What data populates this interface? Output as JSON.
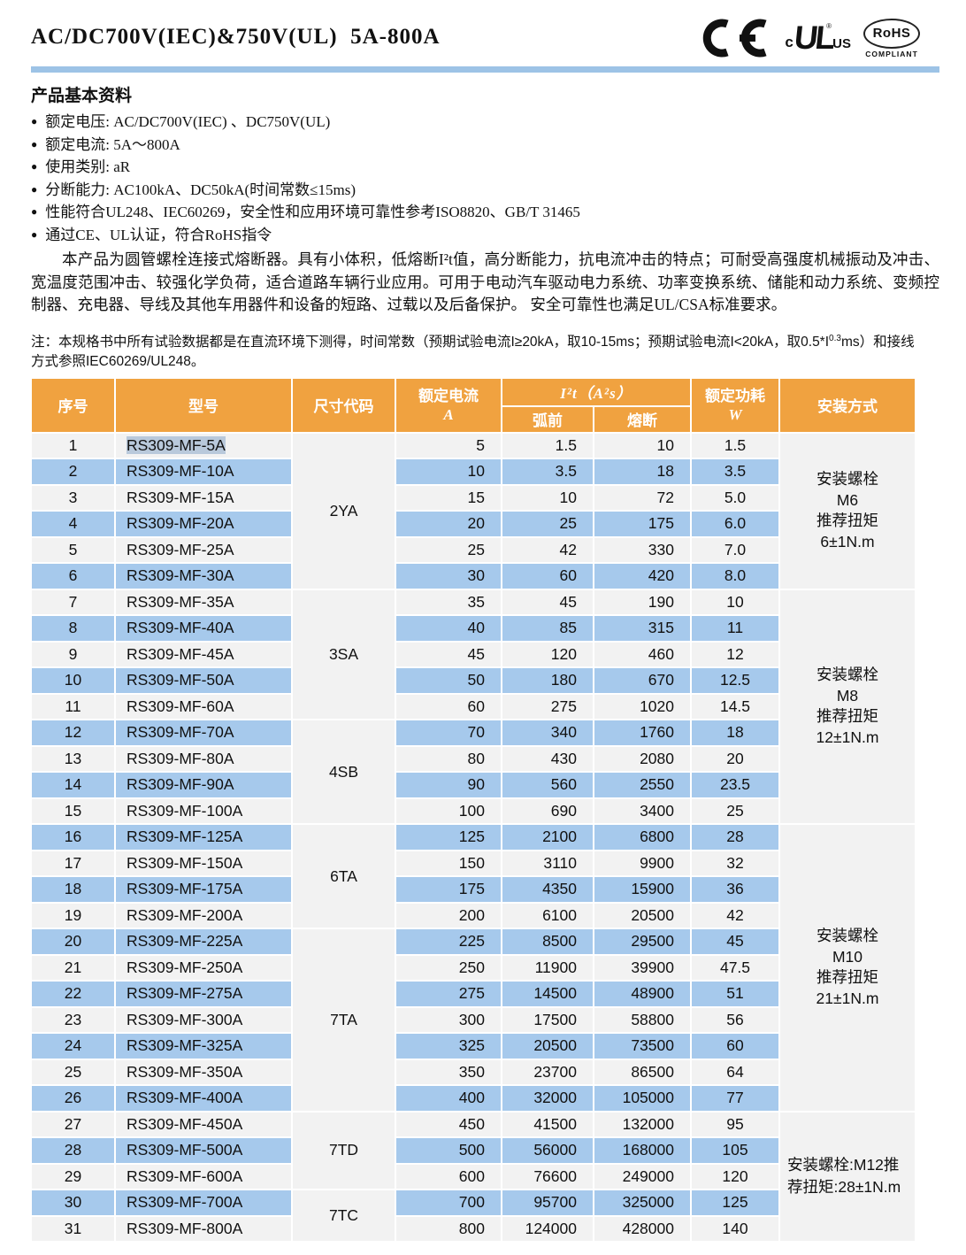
{
  "header": {
    "title": "AC/DC700V(IEC)&750V(UL)  5A-800A",
    "logos": {
      "ce": "CE-mark",
      "ul_c": "c",
      "ul": "UL",
      "ul_us": "US",
      "ul_reg": "®",
      "rohs": "RoHS",
      "rohs_compliant": "COMPLIANT"
    }
  },
  "basic_info": {
    "heading": "产品基本资料",
    "bullets": [
      "额定电压: AC/DC700V(IEC) 、DC750V(UL)",
      "额定电流: 5A～800A",
      "使用类别: aR",
      "分断能力: AC100kA、DC50kA(时间常数≤15ms)",
      "性能符合UL248、IEC60269，安全性和应用环境可靠性参考ISO8820、GB/T 31465",
      "通过CE、UL认证，符合RoHS指令"
    ],
    "paragraph": "本产品为圆管螺栓连接式熔断器。具有小体积，低熔断I²t值，高分断能力，抗电流冲击的特点；可耐受高强度机械振动及冲击、宽温度范围冲击、较强化学负荷，适合道路车辆行业应用。可用于电动汽车驱动电力系统、功率变换系统、储能和动力系统、变频控制器、充电器、导线及其他车用器件和设备的短路、过载以及后备保护。 安全可靠性也满足UL/CSA标准要求。"
  },
  "note": {
    "part1": "注：本规格书中所有试验数据都是在直流环境下测得，时间常数（预期试验电流I≥20kA，取10-15ms；预期试验电流I<20kA，取0.5*I",
    "sup": "0.3",
    "part2": "ms）和接线方式参照IEC60269/UL248。"
  },
  "table": {
    "headers": {
      "no": "序号",
      "model": "型号",
      "size_code": "尺寸代码",
      "current_line1": "额定电流",
      "current_line2": "A",
      "i2t": "I²t（A²s）",
      "prearc": "弧前",
      "melt": "熔断",
      "power_line1": "额定功耗",
      "power_line2": "W",
      "mount": "安装方式"
    },
    "rows": [
      {
        "no": "1",
        "model": "RS309-MF-5A",
        "current": "5",
        "prearc": "1.5",
        "melt": "10",
        "power": "1.5",
        "highlight": true
      },
      {
        "no": "2",
        "model": "RS309-MF-10A",
        "current": "10",
        "prearc": "3.5",
        "melt": "18",
        "power": "3.5"
      },
      {
        "no": "3",
        "model": "RS309-MF-15A",
        "current": "15",
        "prearc": "10",
        "melt": "72",
        "power": "5.0"
      },
      {
        "no": "4",
        "model": "RS309-MF-20A",
        "current": "20",
        "prearc": "25",
        "melt": "175",
        "power": "6.0"
      },
      {
        "no": "5",
        "model": "RS309-MF-25A",
        "current": "25",
        "prearc": "42",
        "melt": "330",
        "power": "7.0"
      },
      {
        "no": "6",
        "model": "RS309-MF-30A",
        "current": "30",
        "prearc": "60",
        "melt": "420",
        "power": "8.0"
      },
      {
        "no": "7",
        "model": "RS309-MF-35A",
        "current": "35",
        "prearc": "45",
        "melt": "190",
        "power": "10"
      },
      {
        "no": "8",
        "model": "RS309-MF-40A",
        "current": "40",
        "prearc": "85",
        "melt": "315",
        "power": "11"
      },
      {
        "no": "9",
        "model": "RS309-MF-45A",
        "current": "45",
        "prearc": "120",
        "melt": "460",
        "power": "12"
      },
      {
        "no": "10",
        "model": "RS309-MF-50A",
        "current": "50",
        "prearc": "180",
        "melt": "670",
        "power": "12.5"
      },
      {
        "no": "11",
        "model": "RS309-MF-60A",
        "current": "60",
        "prearc": "275",
        "melt": "1020",
        "power": "14.5"
      },
      {
        "no": "12",
        "model": "RS309-MF-70A",
        "current": "70",
        "prearc": "340",
        "melt": "1760",
        "power": "18"
      },
      {
        "no": "13",
        "model": "RS309-MF-80A",
        "current": "80",
        "prearc": "430",
        "melt": "2080",
        "power": "20"
      },
      {
        "no": "14",
        "model": "RS309-MF-90A",
        "current": "90",
        "prearc": "560",
        "melt": "2550",
        "power": "23.5"
      },
      {
        "no": "15",
        "model": "RS309-MF-100A",
        "current": "100",
        "prearc": "690",
        "melt": "3400",
        "power": "25"
      },
      {
        "no": "16",
        "model": "RS309-MF-125A",
        "current": "125",
        "prearc": "2100",
        "melt": "6800",
        "power": "28"
      },
      {
        "no": "17",
        "model": "RS309-MF-150A",
        "current": "150",
        "prearc": "3110",
        "melt": "9900",
        "power": "32"
      },
      {
        "no": "18",
        "model": "RS309-MF-175A",
        "current": "175",
        "prearc": "4350",
        "melt": "15900",
        "power": "36"
      },
      {
        "no": "19",
        "model": "RS309-MF-200A",
        "current": "200",
        "prearc": "6100",
        "melt": "20500",
        "power": "42"
      },
      {
        "no": "20",
        "model": "RS309-MF-225A",
        "current": "225",
        "prearc": "8500",
        "melt": "29500",
        "power": "45"
      },
      {
        "no": "21",
        "model": "RS309-MF-250A",
        "current": "250",
        "prearc": "11900",
        "melt": "39900",
        "power": "47.5"
      },
      {
        "no": "22",
        "model": "RS309-MF-275A",
        "current": "275",
        "prearc": "14500",
        "melt": "48900",
        "power": "51"
      },
      {
        "no": "23",
        "model": "RS309-MF-300A",
        "current": "300",
        "prearc": "17500",
        "melt": "58800",
        "power": "56"
      },
      {
        "no": "24",
        "model": "RS309-MF-325A",
        "current": "325",
        "prearc": "20500",
        "melt": "73500",
        "power": "60"
      },
      {
        "no": "25",
        "model": "RS309-MF-350A",
        "current": "350",
        "prearc": "23700",
        "melt": "86500",
        "power": "64"
      },
      {
        "no": "26",
        "model": "RS309-MF-400A",
        "current": "400",
        "prearc": "32000",
        "melt": "105000",
        "power": "77"
      },
      {
        "no": "27",
        "model": "RS309-MF-450A",
        "current": "450",
        "prearc": "41500",
        "melt": "132000",
        "power": "95"
      },
      {
        "no": "28",
        "model": "RS309-MF-500A",
        "current": "500",
        "prearc": "56000",
        "melt": "168000",
        "power": "105"
      },
      {
        "no": "29",
        "model": "RS309-MF-600A",
        "current": "600",
        "prearc": "76600",
        "melt": "249000",
        "power": "120"
      },
      {
        "no": "30",
        "model": "RS309-MF-700A",
        "current": "700",
        "prearc": "95700",
        "melt": "325000",
        "power": "125"
      },
      {
        "no": "31",
        "model": "RS309-MF-800A",
        "current": "800",
        "prearc": "124000",
        "melt": "428000",
        "power": "140"
      }
    ],
    "size_groups": [
      {
        "start": 0,
        "span": 6,
        "code": "2YA"
      },
      {
        "start": 6,
        "span": 5,
        "code": "3SA"
      },
      {
        "start": 11,
        "span": 4,
        "code": "4SB"
      },
      {
        "start": 15,
        "span": 4,
        "code": "6TA"
      },
      {
        "start": 19,
        "span": 7,
        "code": "7TA"
      },
      {
        "start": 26,
        "span": 3,
        "code": "7TD"
      },
      {
        "start": 29,
        "span": 2,
        "code": "7TC"
      }
    ],
    "mount_groups": [
      {
        "start": 0,
        "span": 6,
        "align": "center",
        "lines": [
          "安装螺栓",
          "M6",
          "推荐扭矩",
          "6±1N.m"
        ]
      },
      {
        "start": 6,
        "span": 9,
        "align": "center",
        "lines": [
          "安装螺栓",
          "M8",
          "推荐扭矩",
          "12±1N.m"
        ]
      },
      {
        "start": 15,
        "span": 11,
        "align": "center",
        "lines": [
          "安装螺栓",
          "M10",
          "推荐扭矩",
          "21±1N.m"
        ]
      },
      {
        "start": 26,
        "span": 5,
        "align": "left",
        "lines": [
          "安装螺栓:M12推",
          "荐扭矩:28±1N.m"
        ]
      }
    ]
  },
  "colors": {
    "header_bg": "#F0A240",
    "stripe_blue": "#A6C9EC",
    "stripe_gray": "#F2F2F2",
    "rule_blue": "#9DC3E6",
    "selection_highlight": "#B9C9DB",
    "header_text": "#FFFFFF"
  }
}
